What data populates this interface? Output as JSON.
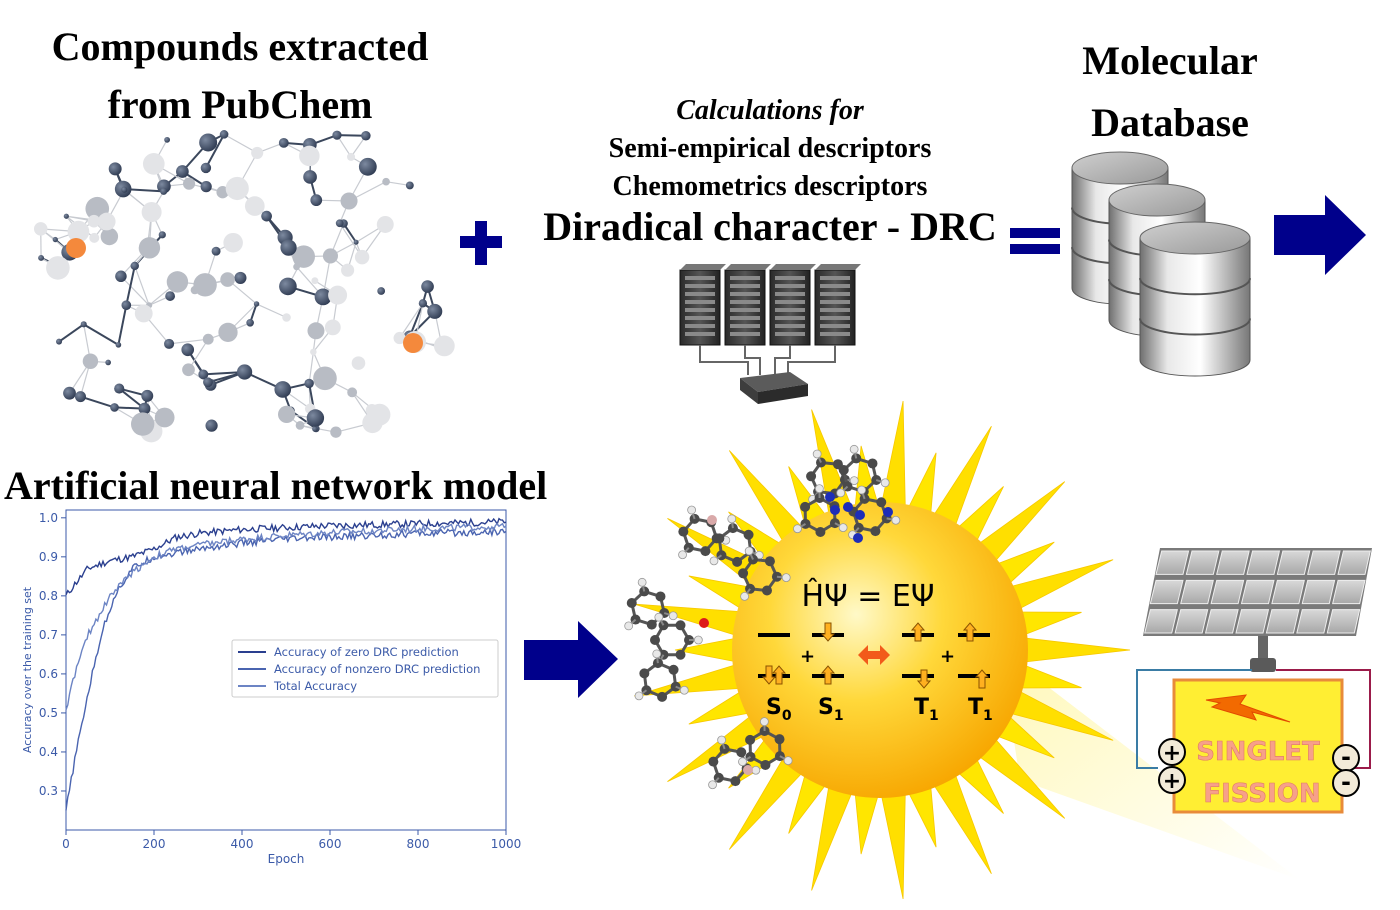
{
  "titles": {
    "compounds_line1": "Compounds extracted",
    "compounds_line2": "from PubChem",
    "molecular_line1": "Molecular",
    "molecular_line2": "Database",
    "calc_italic": "Calculations for",
    "calc_line2": "Semi-empirical descriptors",
    "calc_line3": "Chemometrics descriptors",
    "diradical": "Diradical character - DRC",
    "ann": "Artificial neural network model"
  },
  "equation": "ĤΨ = EΨ",
  "states": {
    "s0": "S",
    "s0_sub": "0",
    "s1": "S",
    "s1_sub": "1",
    "t1a": "T",
    "t1a_sub": "1",
    "t1b": "T",
    "t1b_sub": "1"
  },
  "device": {
    "line1": "SINGLET",
    "line2": "FISSION",
    "plus": "+",
    "minus": "-"
  },
  "colors": {
    "navy": "#00008b",
    "chart_line": "#2e4a9e",
    "sun": "#ffd400",
    "device_fill": "#ffee33",
    "device_text": "#f59a8a"
  },
  "icons": [
    "plus-sign-icon",
    "equals-sign-icon",
    "arrow-right-icon",
    "server-rack-icon",
    "database-cylinders-icon",
    "solar-panel-icon",
    "lightning-icon",
    "sun-icon",
    "molecule-network-icon"
  ],
  "chart_data": {
    "type": "line",
    "xlabel": "Epoch",
    "ylabel": "Accuracy over the training set",
    "xlim": [
      0,
      1000
    ],
    "ylim": [
      0.2,
      1.02
    ],
    "xticks": [
      0,
      200,
      400,
      600,
      800,
      1000
    ],
    "yticks": [
      0.3,
      0.4,
      0.5,
      0.6,
      0.7,
      0.8,
      0.9,
      1.0
    ],
    "legend_position": "center-right",
    "grid": false,
    "series": [
      {
        "name": "Accuracy of zero DRC prediction",
        "color": "#2a3f8f",
        "x": [
          0,
          20,
          50,
          100,
          150,
          200,
          250,
          300,
          400,
          500,
          600,
          700,
          800,
          900,
          1000
        ],
        "y": [
          0.8,
          0.83,
          0.87,
          0.89,
          0.9,
          0.92,
          0.95,
          0.96,
          0.97,
          0.975,
          0.98,
          0.982,
          0.985,
          0.987,
          0.99
        ]
      },
      {
        "name": "Accuracy of nonzero DRC prediction",
        "color": "#4a64b0",
        "x": [
          0,
          20,
          50,
          80,
          110,
          150,
          200,
          250,
          300,
          400,
          500,
          600,
          700,
          800,
          900,
          1000
        ],
        "y": [
          0.25,
          0.38,
          0.55,
          0.7,
          0.8,
          0.87,
          0.9,
          0.91,
          0.92,
          0.935,
          0.945,
          0.95,
          0.955,
          0.96,
          0.962,
          0.965
        ]
      },
      {
        "name": "Total Accuracy",
        "color": "#6c84c4",
        "x": [
          0,
          20,
          50,
          100,
          150,
          200,
          250,
          300,
          400,
          500,
          600,
          700,
          800,
          900,
          1000
        ],
        "y": [
          0.51,
          0.6,
          0.7,
          0.8,
          0.86,
          0.9,
          0.92,
          0.93,
          0.945,
          0.955,
          0.962,
          0.967,
          0.972,
          0.975,
          0.978
        ]
      }
    ]
  }
}
